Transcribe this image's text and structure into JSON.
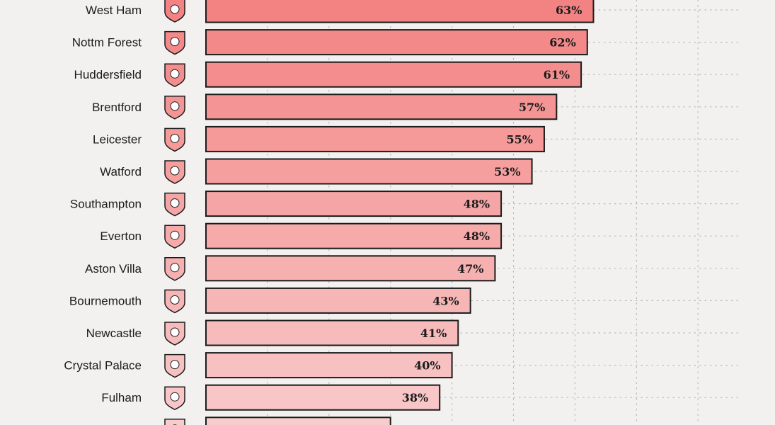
{
  "chart_data": {
    "type": "bar",
    "orientation": "horizontal",
    "categories": [
      "West Ham",
      "Nottm Forest",
      "Huddersfield",
      "Brentford",
      "Leicester",
      "Watford",
      "Southampton",
      "Everton",
      "Aston Villa",
      "Bournemouth",
      "Newcastle",
      "Crystal Palace",
      "Fulham",
      ""
    ],
    "values": [
      63,
      62,
      61,
      57,
      55,
      53,
      48,
      48,
      47,
      43,
      41,
      40,
      38,
      30
    ],
    "value_labels": [
      "63%",
      "62%",
      "61%",
      "57%",
      "55%",
      "53%",
      "48%",
      "48%",
      "47%",
      "43%",
      "41%",
      "40%",
      "38%",
      ""
    ],
    "value_unit": "%",
    "xlim": [
      0,
      85
    ],
    "grid": true,
    "colors": {
      "high": "#f38383",
      "low": "#f8cccc",
      "bar_border": "#1b1b1b",
      "grid": "#b9b9b9"
    }
  },
  "crest_icons": [
    "west-ham-crest-icon",
    "nottm-forest-crest-icon",
    "huddersfield-crest-icon",
    "brentford-crest-icon",
    "leicester-crest-icon",
    "watford-crest-icon",
    "southampton-crest-icon",
    "everton-crest-icon",
    "aston-villa-crest-icon",
    "bournemouth-crest-icon",
    "newcastle-crest-icon",
    "crystal-palace-crest-icon",
    "fulham-crest-icon",
    "burnley-crest-icon"
  ]
}
